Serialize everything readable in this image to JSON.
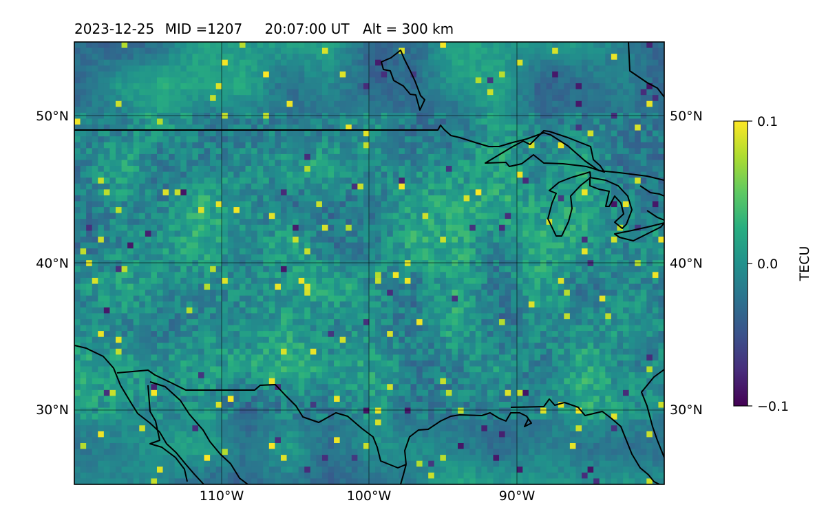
{
  "title": {
    "date": "2023-12-25",
    "mid": "MID =1207",
    "time": "20:07:00  UT",
    "alt": "Alt = 300 km"
  },
  "map": {
    "lon_range": [
      -120,
      -80
    ],
    "lat_range": [
      25,
      55
    ],
    "grid_lons": [
      -110,
      -100,
      -90
    ],
    "grid_lats": [
      30,
      40,
      50
    ],
    "lon_labels": [
      "110°W",
      "100°W",
      "90°W"
    ],
    "lat_labels": [
      "30°N",
      "40°N",
      "50°N"
    ],
    "colormap": "viridis",
    "field": "TEC perturbation",
    "field_range": [
      -0.1,
      0.1
    ],
    "typical_value": 0.0
  },
  "colorbar": {
    "label": "TECU",
    "min": -0.1,
    "max": 0.1,
    "ticks": [
      "0.1",
      "0.0",
      "−0.1"
    ]
  }
}
